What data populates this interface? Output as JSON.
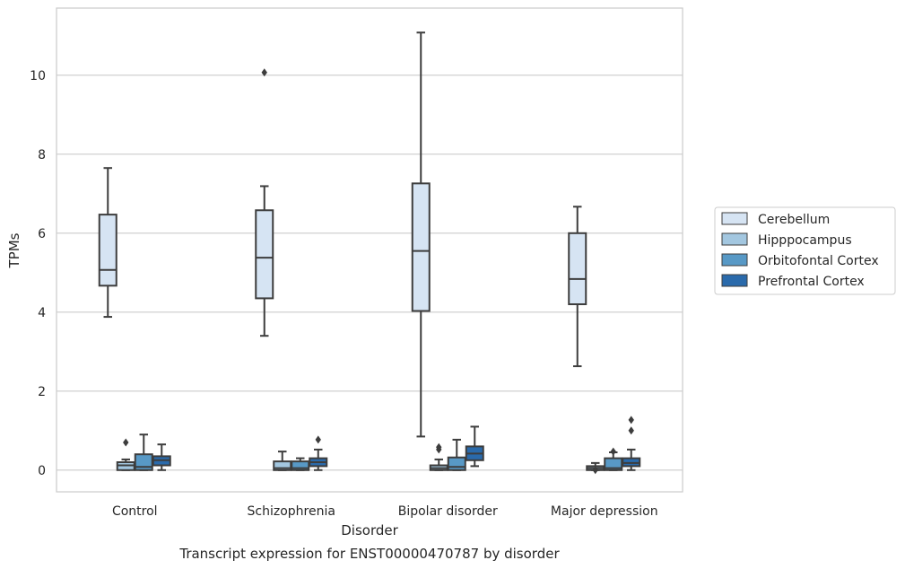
{
  "caption": "Transcript expression for ENST00000470787 by disorder",
  "chart_data": {
    "type": "boxplot",
    "xlabel": "Disorder",
    "ylabel": "TPMs",
    "ylim": [
      -0.55,
      11.7
    ],
    "yticks": [
      0,
      2,
      4,
      6,
      8,
      10
    ],
    "grid": "horizontal",
    "legend_position": "right",
    "categories": [
      "Control",
      "Schizophrenia",
      "Bipolar disorder",
      "Major depression"
    ],
    "series": [
      {
        "name": "Cerebellum",
        "color": "#d6e4f3",
        "boxes": [
          {
            "whisker_low": 3.88,
            "q1": 4.67,
            "median": 5.07,
            "q3": 6.47,
            "whisker_high": 7.65,
            "outliers": []
          },
          {
            "whisker_low": 3.4,
            "q1": 4.35,
            "median": 5.38,
            "q3": 6.58,
            "whisker_high": 7.19,
            "outliers": [
              10.07
            ]
          },
          {
            "whisker_low": 0.85,
            "q1": 4.03,
            "median": 5.55,
            "q3": 7.26,
            "whisker_high": 11.08,
            "outliers": []
          },
          {
            "whisker_low": 2.63,
            "q1": 4.2,
            "median": 4.84,
            "q3": 6.0,
            "whisker_high": 6.67,
            "outliers": []
          }
        ]
      },
      {
        "name": "Hipppocampus",
        "color": "#a3c7e0",
        "boxes": [
          {
            "whisker_low": 0.0,
            "q1": 0.0,
            "median": 0.12,
            "q3": 0.2,
            "whisker_high": 0.27,
            "outliers": [
              0.7
            ]
          },
          {
            "whisker_low": 0.0,
            "q1": 0.0,
            "median": 0.05,
            "q3": 0.22,
            "whisker_high": 0.47,
            "outliers": []
          },
          {
            "whisker_low": 0.0,
            "q1": 0.0,
            "median": 0.05,
            "q3": 0.12,
            "whisker_high": 0.27,
            "outliers": [
              0.52,
              0.58
            ]
          },
          {
            "whisker_low": 0.0,
            "q1": 0.0,
            "median": 0.05,
            "q3": 0.1,
            "whisker_high": 0.18,
            "outliers": [
              0.0
            ]
          }
        ]
      },
      {
        "name": "Orbitofontal Cortex",
        "color": "#5899c6",
        "boxes": [
          {
            "whisker_low": 0.0,
            "q1": 0.0,
            "median": 0.08,
            "q3": 0.4,
            "whisker_high": 0.9,
            "outliers": []
          },
          {
            "whisker_low": 0.0,
            "q1": 0.0,
            "median": 0.05,
            "q3": 0.22,
            "whisker_high": 0.3,
            "outliers": []
          },
          {
            "whisker_low": 0.0,
            "q1": 0.0,
            "median": 0.08,
            "q3": 0.32,
            "whisker_high": 0.77,
            "outliers": []
          },
          {
            "whisker_low": 0.0,
            "q1": 0.0,
            "median": 0.05,
            "q3": 0.3,
            "whisker_high": 0.45,
            "outliers": [
              0.47
            ]
          }
        ]
      },
      {
        "name": "Prefrontal Cortex",
        "color": "#2a6aab",
        "boxes": [
          {
            "whisker_low": 0.0,
            "q1": 0.12,
            "median": 0.25,
            "q3": 0.35,
            "whisker_high": 0.65,
            "outliers": []
          },
          {
            "whisker_low": 0.0,
            "q1": 0.1,
            "median": 0.2,
            "q3": 0.3,
            "whisker_high": 0.52,
            "outliers": [
              0.77
            ]
          },
          {
            "whisker_low": 0.1,
            "q1": 0.25,
            "median": 0.42,
            "q3": 0.6,
            "whisker_high": 1.1,
            "outliers": []
          },
          {
            "whisker_low": 0.0,
            "q1": 0.1,
            "median": 0.18,
            "q3": 0.3,
            "whisker_high": 0.52,
            "outliers": [
              1.0,
              1.27
            ]
          }
        ]
      }
    ]
  }
}
